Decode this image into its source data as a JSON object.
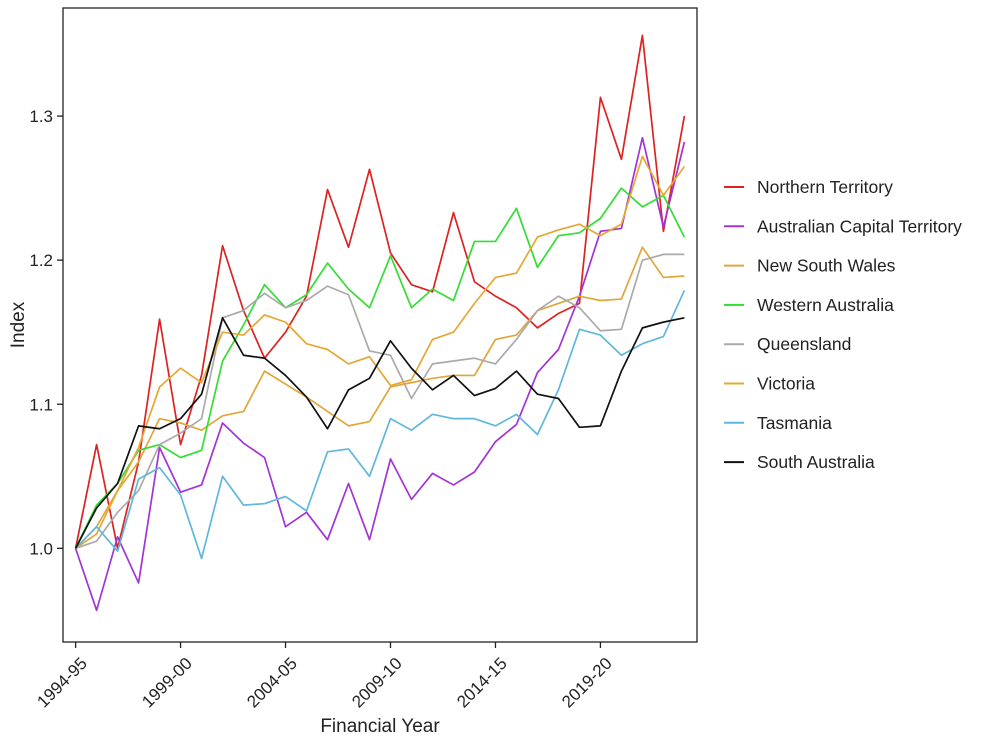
{
  "chart_data": {
    "type": "line",
    "title": "",
    "xlabel": "Financial Year",
    "ylabel": "Index",
    "x": [
      1995,
      1996,
      1997,
      1998,
      1999,
      2000,
      2001,
      2002,
      2003,
      2004,
      2005,
      2006,
      2007,
      2008,
      2009,
      2010,
      2011,
      2012,
      2013,
      2014,
      2015,
      2016,
      2017,
      2018,
      2019,
      2020,
      2021,
      2022,
      2023,
      2024
    ],
    "xlim": [
      1994.4,
      2024.6
    ],
    "ylim": [
      0.935,
      1.375
    ],
    "x_ticks": [
      {
        "value": 1995,
        "label": "1994-95"
      },
      {
        "value": 2000,
        "label": "1999-00"
      },
      {
        "value": 2005,
        "label": "2004-05"
      },
      {
        "value": 2010,
        "label": "2009-10"
      },
      {
        "value": 2015,
        "label": "2014-15"
      },
      {
        "value": 2020,
        "label": "2019-20"
      }
    ],
    "y_ticks": [
      {
        "value": 1.0,
        "label": "1.0"
      },
      {
        "value": 1.1,
        "label": "1.1"
      },
      {
        "value": 1.2,
        "label": "1.2"
      },
      {
        "value": 1.3,
        "label": "1.3"
      }
    ],
    "grid": false,
    "legend_position": "right",
    "series": [
      {
        "name": "Northern Territory",
        "color": "#dd2222",
        "values": [
          1.0,
          1.072,
          1.0,
          1.06,
          1.159,
          1.072,
          1.12,
          1.21,
          1.165,
          1.132,
          1.15,
          1.175,
          1.249,
          1.209,
          1.263,
          1.205,
          1.183,
          1.178,
          1.233,
          1.185,
          1.175,
          1.167,
          1.153,
          1.163,
          1.17,
          1.313,
          1.27,
          1.356,
          1.22,
          1.3
        ]
      },
      {
        "name": "Australian Capital Territory",
        "color": "#a233d6",
        "values": [
          1.0,
          0.957,
          1.008,
          0.976,
          1.07,
          1.039,
          1.044,
          1.087,
          1.073,
          1.063,
          1.015,
          1.025,
          1.006,
          1.045,
          1.006,
          1.062,
          1.034,
          1.052,
          1.044,
          1.053,
          1.074,
          1.086,
          1.122,
          1.138,
          1.175,
          1.22,
          1.222,
          1.285,
          1.223,
          1.282
        ]
      },
      {
        "name": "New South Wales",
        "color": "#e0a63a",
        "values": [
          1.0,
          1.015,
          1.04,
          1.06,
          1.09,
          1.087,
          1.082,
          1.092,
          1.095,
          1.123,
          1.114,
          1.105,
          1.095,
          1.085,
          1.088,
          1.112,
          1.115,
          1.118,
          1.12,
          1.12,
          1.145,
          1.148,
          1.165,
          1.17,
          1.175,
          1.172,
          1.173,
          1.209,
          1.188,
          1.189
        ]
      },
      {
        "name": "Western Australia",
        "color": "#33dd33",
        "values": [
          1.0,
          1.03,
          1.045,
          1.068,
          1.072,
          1.063,
          1.068,
          1.13,
          1.155,
          1.183,
          1.167,
          1.176,
          1.198,
          1.18,
          1.167,
          1.203,
          1.167,
          1.18,
          1.172,
          1.213,
          1.213,
          1.236,
          1.195,
          1.217,
          1.219,
          1.229,
          1.25,
          1.237,
          1.245,
          1.216
        ]
      },
      {
        "name": "Queensland",
        "color": "#aaaaaa",
        "values": [
          1.0,
          1.005,
          1.025,
          1.04,
          1.072,
          1.08,
          1.09,
          1.16,
          1.165,
          1.177,
          1.167,
          1.172,
          1.182,
          1.176,
          1.137,
          1.134,
          1.104,
          1.128,
          1.13,
          1.132,
          1.128,
          1.145,
          1.165,
          1.175,
          1.167,
          1.151,
          1.152,
          1.2,
          1.204,
          1.204
        ]
      },
      {
        "name": "Victoria",
        "color": "#e5a832",
        "values": [
          1.0,
          1.01,
          1.04,
          1.07,
          1.112,
          1.125,
          1.115,
          1.15,
          1.148,
          1.162,
          1.157,
          1.142,
          1.138,
          1.128,
          1.133,
          1.113,
          1.117,
          1.145,
          1.15,
          1.17,
          1.188,
          1.191,
          1.216,
          1.221,
          1.225,
          1.217,
          1.225,
          1.272,
          1.245,
          1.265
        ]
      },
      {
        "name": "Tasmania",
        "color": "#5fb8dc",
        "values": [
          1.0,
          1.015,
          0.998,
          1.048,
          1.056,
          1.037,
          0.993,
          1.05,
          1.03,
          1.031,
          1.036,
          1.026,
          1.067,
          1.069,
          1.05,
          1.09,
          1.082,
          1.093,
          1.09,
          1.09,
          1.085,
          1.093,
          1.079,
          1.11,
          1.152,
          1.148,
          1.134,
          1.142,
          1.147,
          1.179
        ]
      },
      {
        "name": "South Australia",
        "color": "#111111",
        "values": [
          1.0,
          1.028,
          1.045,
          1.085,
          1.083,
          1.09,
          1.107,
          1.16,
          1.134,
          1.132,
          1.12,
          1.105,
          1.083,
          1.11,
          1.118,
          1.144,
          1.125,
          1.11,
          1.12,
          1.106,
          1.111,
          1.123,
          1.107,
          1.104,
          1.084,
          1.085,
          1.123,
          1.153,
          1.157,
          1.16
        ]
      }
    ]
  }
}
